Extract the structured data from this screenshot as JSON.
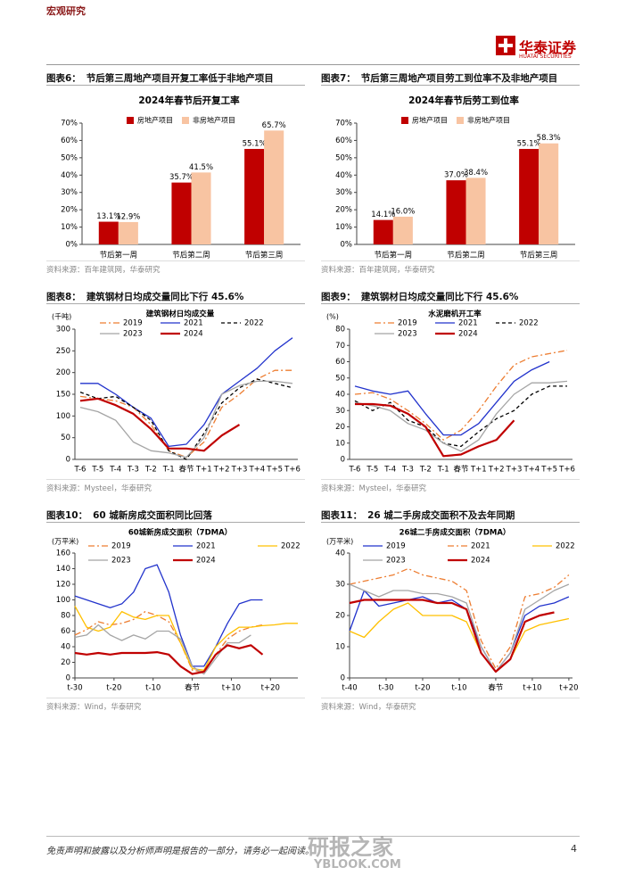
{
  "header": {
    "section": "宏观研究",
    "logo_cn": "华泰证券",
    "logo_en": "HUATAI SECURITIES"
  },
  "figures": [
    {
      "label": "图表6：",
      "caption": "节后第三周地产项目开复工率低于非地产项目",
      "source": "资料来源：百年建筑网，华泰研究",
      "chart": {
        "type": "bar",
        "title": "2024年春节后开复工率",
        "categories": [
          "节后第一周",
          "节后第二周",
          "节后第三周"
        ],
        "series": [
          {
            "name": "房地产项目",
            "color": "#C00000",
            "values": [
              13.1,
              35.7,
              55.1
            ],
            "value_labels": [
              "13.1%",
              "35.7%",
              "55.1%"
            ]
          },
          {
            "name": "非房地产项目",
            "color": "#F8C4A2",
            "values": [
              12.9,
              41.5,
              65.7
            ],
            "value_labels": [
              "12.9%",
              "41.5%",
              "65.7%"
            ]
          }
        ],
        "ylim": [
          0,
          70
        ],
        "yticks": [
          {
            "value": 0,
            "label": "0%"
          },
          {
            "value": 10,
            "label": "10%"
          },
          {
            "value": 20,
            "label": "20%"
          },
          {
            "value": 30,
            "label": "30%"
          },
          {
            "value": 40,
            "label": "40%"
          },
          {
            "value": 50,
            "label": "50%"
          },
          {
            "value": 60,
            "label": "60%"
          },
          {
            "value": 70,
            "label": "70%"
          }
        ]
      }
    },
    {
      "label": "图表7：",
      "caption": "节后第三周地产项目劳工到位率不及非地产项目",
      "source": "资料来源：百年建筑网，华泰研究",
      "chart": {
        "type": "bar",
        "title": "2024年春节后劳工到位率",
        "categories": [
          "节后第一周",
          "节后第二周",
          "节后第三周"
        ],
        "series": [
          {
            "name": "房地产项目",
            "color": "#C00000",
            "values": [
              14.1,
              37.0,
              55.1
            ],
            "value_labels": [
              "14.1%",
              "37.0%",
              "55.1%"
            ]
          },
          {
            "name": "非房地产项目",
            "color": "#F8C4A2",
            "values": [
              16.0,
              38.4,
              58.3
            ],
            "value_labels": [
              "16.0%",
              "38.4%",
              "58.3%"
            ]
          }
        ],
        "ylim": [
          0,
          70
        ],
        "yticks": [
          {
            "value": 0,
            "label": "0%"
          },
          {
            "value": 10,
            "label": "10%"
          },
          {
            "value": 20,
            "label": "20%"
          },
          {
            "value": 30,
            "label": "30%"
          },
          {
            "value": 40,
            "label": "40%"
          },
          {
            "value": 50,
            "label": "50%"
          },
          {
            "value": 60,
            "label": "60%"
          },
          {
            "value": 70,
            "label": "70%"
          }
        ]
      }
    },
    {
      "label": "图表8：",
      "caption": "建筑钢材日均成交量同比下行 45.6%",
      "source": "资料来源：Mysteel，华泰研究",
      "chart": {
        "type": "line",
        "title": "建筑钢材日均成交量",
        "y_unit": "(千吨)",
        "categories": [
          "T-6",
          "T-5",
          "T-4",
          "T-3",
          "T-2",
          "T-1",
          "春节",
          "T+1",
          "T+2",
          "T+3",
          "T+4",
          "T+5",
          "T+6"
        ],
        "series": [
          {
            "name": "2019",
            "color": "#ED7D31",
            "linestyle": "dashdot",
            "linewidth": 1.3,
            "values": [
              145,
              140,
              135,
              120,
              80,
              20,
              5,
              40,
              120,
              150,
              185,
              205,
              205
            ]
          },
          {
            "name": "2021",
            "color": "#2233CC",
            "linestyle": "solid",
            "linewidth": 1.3,
            "values": [
              175,
              175,
              150,
              120,
              95,
              30,
              35,
              80,
              150,
              180,
              210,
              250,
              280
            ]
          },
          {
            "name": "2022",
            "color": "#000000",
            "linestyle": "dashed",
            "linewidth": 1.3,
            "values": [
              155,
              140,
              145,
              120,
              90,
              20,
              0,
              60,
              130,
              165,
              185,
              175,
              165
            ]
          },
          {
            "name": "2023",
            "color": "#A5A5A5",
            "linestyle": "solid",
            "linewidth": 1.3,
            "values": [
              120,
              110,
              90,
              40,
              20,
              15,
              5,
              50,
              150,
              170,
              180,
              180,
              175
            ]
          },
          {
            "name": "2024",
            "color": "#C00000",
            "linestyle": "solid",
            "linewidth": 2.2,
            "values": [
              135,
              140,
              125,
              105,
              70,
              25,
              25,
              20,
              55,
              80,
              null,
              null,
              null
            ]
          }
        ],
        "ylim": [
          0,
          300
        ],
        "yticks": [
          0,
          50,
          100,
          150,
          200,
          250,
          300
        ]
      }
    },
    {
      "label": "图表9：",
      "caption": "建筑钢材日均成交量同比下行 45.6%",
      "source": "资料来源：Mysteel，华泰研究",
      "chart": {
        "type": "line",
        "title": "水泥磨机开工率",
        "y_unit": "(%)",
        "categories": [
          "T-6",
          "T-5",
          "T-4",
          "T-3",
          "T-2",
          "T-1",
          "春节",
          "T+1",
          "T+2",
          "T+3",
          "T+4",
          "T+5",
          "T+6"
        ],
        "series": [
          {
            "name": "2019",
            "color": "#ED7D31",
            "linestyle": "dashdot",
            "linewidth": 1.3,
            "values": [
              40,
              41,
              37,
              30,
              22,
              12,
              18,
              30,
              45,
              58,
              63,
              65,
              67
            ]
          },
          {
            "name": "2021",
            "color": "#2233CC",
            "linestyle": "solid",
            "linewidth": 1.3,
            "values": [
              45,
              42,
              40,
              42,
              28,
              15,
              15,
              22,
              35,
              48,
              55,
              60,
              null
            ]
          },
          {
            "name": "2022",
            "color": "#000000",
            "linestyle": "dashed",
            "linewidth": 1.3,
            "values": [
              36,
              30,
              35,
              24,
              20,
              10,
              8,
              17,
              25,
              30,
              40,
              45,
              45
            ]
          },
          {
            "name": "2023",
            "color": "#A5A5A5",
            "linestyle": "solid",
            "linewidth": 1.3,
            "values": [
              35,
              33,
              30,
              22,
              18,
              10,
              5,
              12,
              28,
              40,
              47,
              47,
              48
            ]
          },
          {
            "name": "2024",
            "color": "#C00000",
            "linestyle": "solid",
            "linewidth": 2.2,
            "values": [
              34,
              34,
              33,
              28,
              20,
              2,
              3,
              8,
              12,
              24,
              null,
              null,
              null
            ]
          }
        ],
        "ylim": [
          0,
          80
        ],
        "yticks": [
          0,
          10,
          20,
          30,
          40,
          50,
          60,
          70,
          80
        ]
      }
    },
    {
      "label": "图表10：",
      "caption": "60 城新房成交面积同比回落",
      "source": "资料来源：Wind，华泰研究",
      "chart": {
        "type": "line",
        "title": "60城新房成交面积（7DMA）",
        "y_unit": "(万平米)",
        "x": [
          -30,
          -27,
          -24,
          -21,
          -18,
          -15,
          -12,
          -9,
          -6,
          -3,
          0,
          3,
          6,
          9,
          12,
          15,
          18,
          21,
          24,
          27
        ],
        "xlim": [
          -30,
          27
        ],
        "xticks": [
          {
            "value": -30,
            "label": "t-30"
          },
          {
            "value": -20,
            "label": "t-20"
          },
          {
            "value": -10,
            "label": "t-10"
          },
          {
            "value": 0,
            "label": "春节"
          },
          {
            "value": 10,
            "label": "t+10"
          },
          {
            "value": 20,
            "label": "t+20"
          }
        ],
        "series": [
          {
            "name": "2019",
            "color": "#ED7D31",
            "linestyle": "dashdot",
            "linewidth": 1.3,
            "values": [
              55,
              62,
              72,
              68,
              70,
              75,
              85,
              80,
              72,
              45,
              10,
              8,
              30,
              50,
              60,
              65,
              68,
              null,
              null,
              null
            ]
          },
          {
            "name": "2021",
            "color": "#2233CC",
            "linestyle": "solid",
            "linewidth": 1.3,
            "values": [
              105,
              100,
              95,
              90,
              95,
              110,
              140,
              145,
              110,
              55,
              15,
              15,
              40,
              70,
              95,
              100,
              100,
              null,
              null,
              null
            ]
          },
          {
            "name": "2022",
            "color": "#FFC000",
            "linestyle": "solid",
            "linewidth": 1.3,
            "values": [
              92,
              65,
              60,
              65,
              85,
              78,
              75,
              80,
              80,
              45,
              12,
              10,
              40,
              55,
              65,
              65,
              67,
              68,
              70,
              70
            ]
          },
          {
            "name": "2023",
            "color": "#A5A5A5",
            "linestyle": "solid",
            "linewidth": 1.3,
            "values": [
              52,
              55,
              68,
              55,
              48,
              55,
              50,
              60,
              60,
              50,
              15,
              5,
              25,
              45,
              45,
              55,
              null,
              null,
              null,
              null
            ]
          },
          {
            "name": "2024",
            "color": "#C00000",
            "linestyle": "solid",
            "linewidth": 2.2,
            "values": [
              32,
              30,
              32,
              30,
              32,
              32,
              32,
              33,
              30,
              15,
              5,
              8,
              30,
              42,
              38,
              42,
              30,
              null,
              null,
              null
            ]
          }
        ],
        "ylim": [
          0,
          160
        ],
        "yticks": [
          0,
          20,
          40,
          60,
          80,
          100,
          120,
          140,
          160
        ]
      }
    },
    {
      "label": "图表11：",
      "caption": "26 城二手房成交面积不及去年同期",
      "source": "资料来源：Wind，华泰研究",
      "chart": {
        "type": "line",
        "title": "26城二手房成交面积（7DMA）",
        "y_unit": "(万平米)",
        "x": [
          -40,
          -36,
          -32,
          -28,
          -24,
          -20,
          -16,
          -12,
          -8,
          -4,
          0,
          4,
          8,
          12,
          16,
          20
        ],
        "xlim": [
          -40,
          21
        ],
        "xticks": [
          {
            "value": -40,
            "label": "t-40"
          },
          {
            "value": -30,
            "label": "t-30"
          },
          {
            "value": -20,
            "label": "t-20"
          },
          {
            "value": -10,
            "label": "t-10"
          },
          {
            "value": 0,
            "label": "春节"
          },
          {
            "value": 10,
            "label": "t+10"
          },
          {
            "value": 20,
            "label": "t+20"
          }
        ],
        "series": [
          {
            "name": "2019",
            "color": "#2233CC",
            "linestyle": "solid",
            "linewidth": 1.3,
            "values": [
              15,
              28,
              23,
              24,
              25,
              26,
              24,
              25,
              22,
              10,
              2,
              8,
              20,
              23,
              24,
              26
            ]
          },
          {
            "name": "2021",
            "color": "#ED7D31",
            "linestyle": "dashdot",
            "linewidth": 1.3,
            "values": [
              30,
              31,
              32,
              33,
              35,
              33,
              32,
              31,
              28,
              12,
              3,
              10,
              26,
              27,
              29,
              33
            ]
          },
          {
            "name": "2022",
            "color": "#FFC000",
            "linestyle": "solid",
            "linewidth": 1.3,
            "values": [
              15,
              13,
              18,
              22,
              24,
              20,
              20,
              20,
              18,
              8,
              2,
              6,
              15,
              17,
              18,
              19
            ]
          },
          {
            "name": "2023",
            "color": "#A5A5A5",
            "linestyle": "solid",
            "linewidth": 1.3,
            "values": [
              30,
              28,
              26,
              28,
              28,
              27,
              27,
              26,
              24,
              10,
              2,
              8,
              22,
              25,
              28,
              30
            ]
          },
          {
            "name": "2024",
            "color": "#C00000",
            "linestyle": "solid",
            "linewidth": 2.2,
            "values": [
              24,
              25,
              25,
              25,
              25,
              25,
              24,
              24,
              22,
              8,
              2,
              6,
              18,
              20,
              21,
              null
            ]
          }
        ],
        "ylim": [
          0,
          40
        ],
        "yticks": [
          0,
          10,
          20,
          30,
          40
        ]
      }
    }
  ],
  "footer": {
    "disclaimer": "免责声明和披露以及分析师声明是报告的一部分，请务必一起阅读。",
    "page": 4,
    "watermark": "研报之家",
    "watermark_en": "YBLOOK.COM"
  }
}
